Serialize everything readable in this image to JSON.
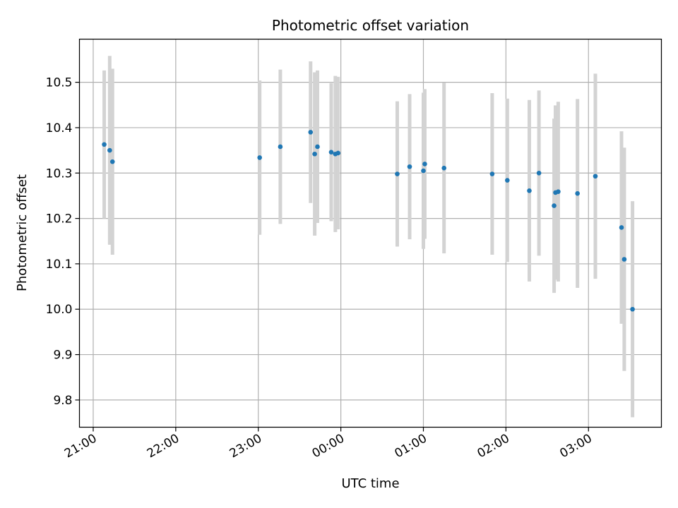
{
  "chart_data": {
    "type": "scatter",
    "title": "Photometric offset variation",
    "xlabel": "UTC time",
    "ylabel": "Photometric offset",
    "x_ticks": [
      "21:00",
      "22:00",
      "23:00",
      "00:00",
      "01:00",
      "02:00",
      "03:00"
    ],
    "y_ticks": [
      "9.8",
      "9.9",
      "10.0",
      "10.1",
      "10.2",
      "10.3",
      "10.4",
      "10.5"
    ],
    "xlim": [
      "20:50",
      "27:53"
    ],
    "ylim": [
      9.74,
      10.595
    ],
    "grid": true,
    "points": [
      {
        "x": "21:08",
        "y": 10.363,
        "err": 0.163
      },
      {
        "x": "21:12",
        "y": 10.35,
        "err": 0.208
      },
      {
        "x": "21:14",
        "y": 10.325,
        "err": 0.205
      },
      {
        "x": "23:01",
        "y": 10.334,
        "err": 0.17
      },
      {
        "x": "23:16",
        "y": 10.358,
        "err": 0.17
      },
      {
        "x": "23:38",
        "y": 10.39,
        "err": 0.156
      },
      {
        "x": "23:41",
        "y": 10.342,
        "err": 0.18
      },
      {
        "x": "23:43",
        "y": 10.358,
        "err": 0.168
      },
      {
        "x": "23:53",
        "y": 10.346,
        "err": 0.152
      },
      {
        "x": "23:56",
        "y": 10.342,
        "err": 0.172
      },
      {
        "x": "23:58",
        "y": 10.344,
        "err": 0.168
      },
      {
        "x": "00:41",
        "y": 10.298,
        "err": 0.16
      },
      {
        "x": "00:50",
        "y": 10.314,
        "err": 0.16
      },
      {
        "x": "01:00",
        "y": 10.305,
        "err": 0.172
      },
      {
        "x": "01:01",
        "y": 10.32,
        "err": 0.165
      },
      {
        "x": "01:15",
        "y": 10.311,
        "err": 0.188
      },
      {
        "x": "01:50",
        "y": 10.298,
        "err": 0.178
      },
      {
        "x": "02:01",
        "y": 10.284,
        "err": 0.18
      },
      {
        "x": "02:17",
        "y": 10.261,
        "err": 0.2
      },
      {
        "x": "02:24",
        "y": 10.3,
        "err": 0.182
      },
      {
        "x": "02:35",
        "y": 10.228,
        "err": 0.192
      },
      {
        "x": "02:36",
        "y": 10.257,
        "err": 0.192
      },
      {
        "x": "02:38",
        "y": 10.259,
        "err": 0.198
      },
      {
        "x": "02:52",
        "y": 10.255,
        "err": 0.208
      },
      {
        "x": "03:05",
        "y": 10.293,
        "err": 0.226
      },
      {
        "x": "03:24",
        "y": 10.18,
        "err": 0.212
      },
      {
        "x": "03:26",
        "y": 10.11,
        "err": 0.246
      },
      {
        "x": "03:32",
        "y": 10.0,
        "err": 0.238
      }
    ],
    "colors": {
      "point": "#1f77b4",
      "errorbar": "#d3d3d3",
      "grid": "#b0b0b0"
    }
  }
}
